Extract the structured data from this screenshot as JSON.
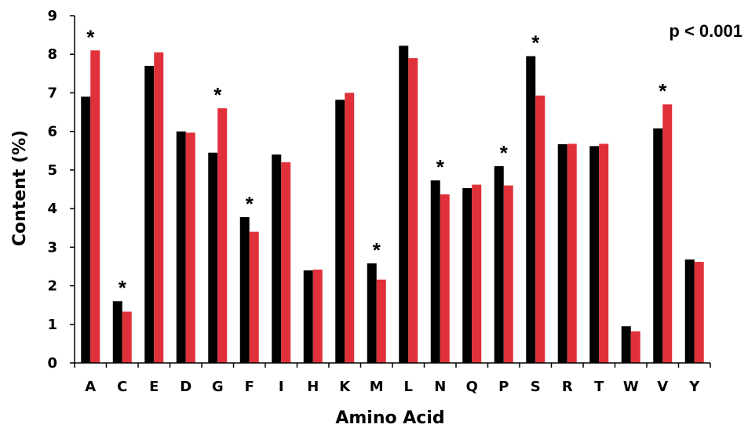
{
  "chart_data": {
    "type": "bar",
    "xlabel": "Amino Acid",
    "ylabel": "Content (%)",
    "ylim": [
      0,
      9
    ],
    "yticks": [
      0,
      1,
      2,
      3,
      4,
      5,
      6,
      7,
      8,
      9
    ],
    "categories": [
      "A",
      "C",
      "E",
      "D",
      "G",
      "F",
      "I",
      "H",
      "K",
      "M",
      "L",
      "N",
      "Q",
      "P",
      "S",
      "R",
      "T",
      "W",
      "V",
      "Y"
    ],
    "series": [
      {
        "color": "#000000",
        "values": [
          6.9,
          1.6,
          7.7,
          6.0,
          5.45,
          3.78,
          5.4,
          2.4,
          6.82,
          2.58,
          8.22,
          4.73,
          4.53,
          5.1,
          7.95,
          5.67,
          5.62,
          0.95,
          6.08,
          2.68
        ]
      },
      {
        "color": "#e0313a",
        "values": [
          8.1,
          1.33,
          8.05,
          5.97,
          6.6,
          3.4,
          5.2,
          2.42,
          7.0,
          2.16,
          7.9,
          4.37,
          4.62,
          4.6,
          6.93,
          5.68,
          5.68,
          0.82,
          6.7,
          2.62
        ]
      }
    ],
    "significant": [
      true,
      true,
      false,
      false,
      true,
      true,
      false,
      false,
      false,
      true,
      false,
      true,
      false,
      true,
      true,
      false,
      false,
      false,
      true,
      false
    ],
    "significance_marker": "*",
    "annotation": "p < 0.001",
    "grid": false,
    "legend": "none"
  }
}
